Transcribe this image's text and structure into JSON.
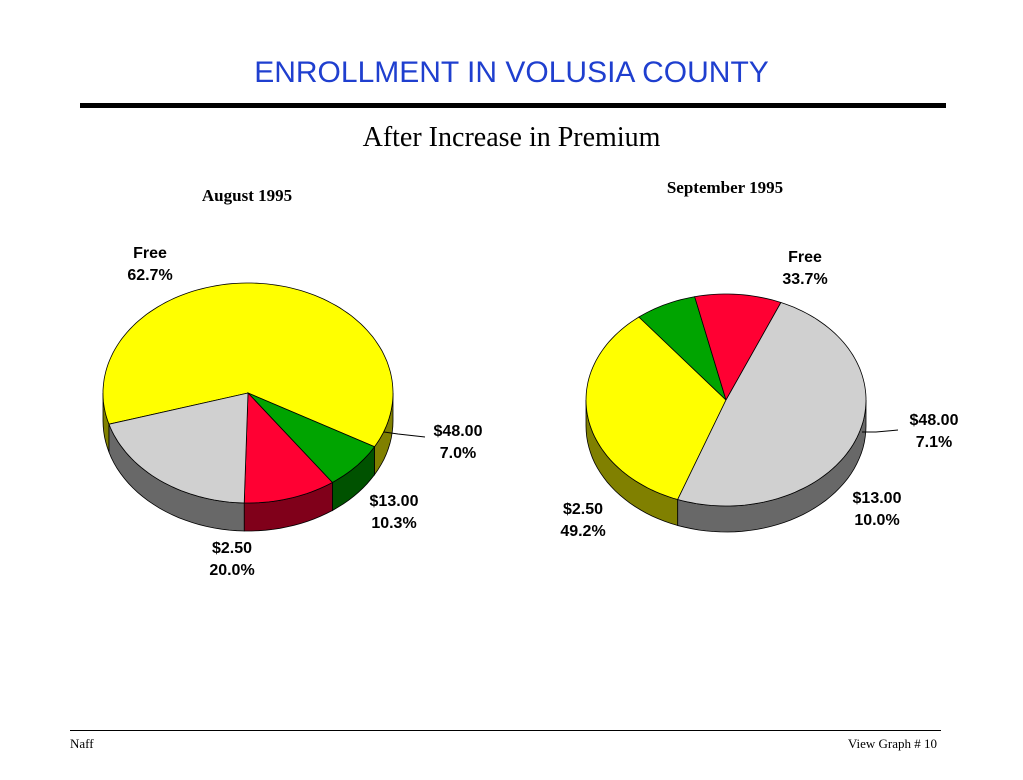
{
  "slide": {
    "title": "ENROLLMENT IN VOLUSIA COUNTY",
    "subtitle": "After Increase in Premium",
    "footer_left": "Naff",
    "footer_right": "View Graph  # 10"
  },
  "colors": {
    "Free": "#ffff00",
    "$48.00": "#00a400",
    "$13.00": "#ff0033",
    "$2.50": "#d0d0d0",
    "title": "#1f3fcf"
  },
  "chart_data": [
    {
      "type": "pie",
      "title": "August 1995",
      "slices": [
        {
          "label": "Free",
          "value": 62.7,
          "pct_label": "62.7%"
        },
        {
          "label": "$48.00",
          "value": 7.0,
          "pct_label": "7.0%"
        },
        {
          "label": "$13.00",
          "value": 10.3,
          "pct_label": "10.3%"
        },
        {
          "label": "$2.50",
          "value": 20.0,
          "pct_label": "20.0%"
        }
      ]
    },
    {
      "type": "pie",
      "title": "September 1995",
      "slices": [
        {
          "label": "Free",
          "value": 33.7,
          "pct_label": "33.7%"
        },
        {
          "label": "$48.00",
          "value": 7.1,
          "pct_label": "7.1%"
        },
        {
          "label": "$13.00",
          "value": 10.0,
          "pct_label": "10.0%"
        },
        {
          "label": "$2.50",
          "value": 49.2,
          "pct_label": "49.2%"
        }
      ]
    }
  ]
}
